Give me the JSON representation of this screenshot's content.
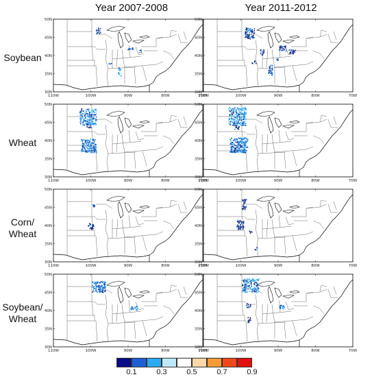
{
  "columns": [
    "Year 2007-2008",
    "Year 2011-2012"
  ],
  "rows": [
    "Soybean",
    "Wheat",
    "Corn/\nWheat",
    "Soybean/\nWheat"
  ],
  "lat_ticks": [
    "50N",
    "45N",
    "40N",
    "35N",
    "30N"
  ],
  "lon_ticks": [
    "110W",
    "100W",
    "90W",
    "80W",
    "70W"
  ],
  "legend": {
    "labels": [
      "0.1",
      "0.3",
      "0.5",
      "0.7",
      "0.9"
    ],
    "colors": [
      "#0b0b8a",
      "#1f5fd6",
      "#2aaaf0",
      "#bfe8f7",
      "#ffffff",
      "#fbd8a8",
      "#f59a35",
      "#f0461c",
      "#e01010"
    ]
  },
  "colors": {
    "low": "#1a237e",
    "mid": "#1e88e5",
    "high": "#4fc3f7",
    "line": "#000000"
  }
}
